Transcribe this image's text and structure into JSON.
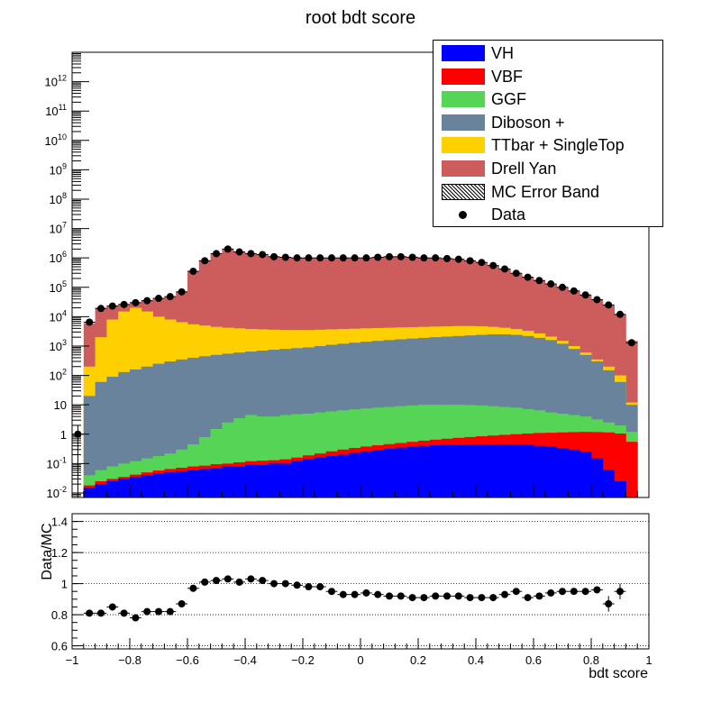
{
  "chart_data": [
    {
      "type": "stacked-histogram",
      "title": "root bdt score",
      "x_range": [
        -1,
        1
      ],
      "bin_count": 50,
      "y_log": true,
      "y_range": [
        0.007,
        10000000000000
      ],
      "y_ticks": [
        {
          "value": 0.01,
          "base": "10",
          "exp": "-2"
        },
        {
          "value": 0.1,
          "base": "10",
          "exp": "-1"
        },
        {
          "value": 1,
          "base": "1",
          "exp": ""
        },
        {
          "value": 10,
          "base": "10",
          "exp": ""
        },
        {
          "value": 100,
          "base": "10",
          "exp": "2"
        },
        {
          "value": 1000,
          "base": "10",
          "exp": "3"
        },
        {
          "value": 10000,
          "base": "10",
          "exp": "4"
        },
        {
          "value": 100000,
          "base": "10",
          "exp": "5"
        },
        {
          "value": 1000000,
          "base": "10",
          "exp": "6"
        },
        {
          "value": 10000000,
          "base": "10",
          "exp": "7"
        },
        {
          "value": 100000000,
          "base": "10",
          "exp": "8"
        },
        {
          "value": 1000000000,
          "base": "10",
          "exp": "9"
        },
        {
          "value": 10000000000,
          "base": "10",
          "exp": "10"
        },
        {
          "value": 100000000000,
          "base": "10",
          "exp": "11"
        },
        {
          "value": 1000000000000,
          "base": "10",
          "exp": "12"
        }
      ],
      "stack_cumulative_top": [
        {
          "name": "VH",
          "color": "#0000ff",
          "values": [
            0,
            0.015,
            0.02,
            0.025,
            0.03,
            0.035,
            0.04,
            0.045,
            0.05,
            0.055,
            0.06,
            0.065,
            0.07,
            0.08,
            0.08,
            0.09,
            0.09,
            0.1,
            0.1,
            0.12,
            0.14,
            0.16,
            0.18,
            0.2,
            0.23,
            0.26,
            0.29,
            0.32,
            0.35,
            0.38,
            0.4,
            0.42,
            0.43,
            0.43,
            0.44,
            0.45,
            0.45,
            0.45,
            0.44,
            0.43,
            0.4,
            0.38,
            0.34,
            0.3,
            0.25,
            0.15,
            0.06,
            0.025,
            0,
            0
          ]
        },
        {
          "name": "VBF",
          "color": "#ff0000",
          "values": [
            0,
            0.018,
            0.025,
            0.03,
            0.035,
            0.042,
            0.05,
            0.058,
            0.065,
            0.072,
            0.08,
            0.085,
            0.095,
            0.1,
            0.11,
            0.12,
            0.125,
            0.13,
            0.14,
            0.16,
            0.19,
            0.22,
            0.26,
            0.3,
            0.34,
            0.38,
            0.42,
            0.46,
            0.5,
            0.55,
            0.6,
            0.65,
            0.7,
            0.75,
            0.8,
            0.85,
            0.9,
            0.95,
            1,
            1.05,
            1.1,
            1.12,
            1.15,
            1.18,
            1.2,
            1.18,
            1.15,
            1.05,
            0.55,
            0
          ]
        },
        {
          "name": "GGF",
          "color": "#55d455",
          "values": [
            0,
            0.04,
            0.06,
            0.08,
            0.1,
            0.12,
            0.15,
            0.18,
            0.22,
            0.3,
            0.45,
            0.8,
            1.5,
            2.5,
            3.5,
            4.5,
            4,
            4,
            4.5,
            4.8,
            5,
            5.5,
            6,
            6.5,
            7,
            7.5,
            8,
            8.5,
            9,
            9.5,
            10,
            10,
            10,
            10,
            9.8,
            9.5,
            9,
            8.5,
            8,
            7.2,
            6.5,
            5.5,
            5,
            4.5,
            4,
            3.2,
            2.5,
            2,
            1.2,
            0
          ]
        },
        {
          "name": "Diboson +",
          "color": "#68839b",
          "values": [
            0,
            20,
            60,
            90,
            130,
            160,
            200,
            250,
            300,
            350,
            400,
            450,
            500,
            550,
            600,
            650,
            700,
            750,
            800,
            850,
            900,
            1000,
            1100,
            1200,
            1300,
            1400,
            1500,
            1600,
            1700,
            1800,
            1900,
            2000,
            2100,
            2200,
            2300,
            2400,
            2500,
            2500,
            2400,
            2200,
            1900,
            1600,
            1200,
            800,
            500,
            300,
            150,
            60,
            10,
            0
          ]
        },
        {
          "name": "TTbar + SingleTop",
          "color": "#ffd000",
          "values": [
            0,
            200,
            2000,
            8000,
            15000,
            20000,
            15000,
            10000,
            8000,
            6500,
            5500,
            5000,
            4500,
            4200,
            4000,
            3800,
            3700,
            3600,
            3500,
            3500,
            3500,
            3600,
            3700,
            3800,
            3900,
            4000,
            4100,
            4200,
            4300,
            4400,
            4500,
            4600,
            4700,
            4800,
            4800,
            4700,
            4500,
            4200,
            3800,
            3300,
            2700,
            2100,
            1500,
            1000,
            600,
            350,
            200,
            100,
            12,
            0
          ]
        },
        {
          "name": "Drell Yan",
          "color": "#cd5c5c",
          "values": [
            0,
            6000,
            20000,
            23000,
            26000,
            30000,
            35000,
            42000,
            48000,
            70000,
            350000,
            800000,
            1400000,
            2000000,
            1600000,
            1400000,
            1300000,
            1100000,
            1050000,
            1000000,
            1000000,
            1000000,
            1000000,
            1000000,
            1000000,
            1000000,
            1050000,
            1100000,
            1100000,
            1050000,
            1000000,
            1000000,
            950000,
            900000,
            800000,
            700000,
            550000,
            420000,
            300000,
            220000,
            170000,
            130000,
            100000,
            75000,
            55000,
            38000,
            25000,
            12000,
            1500,
            0
          ]
        }
      ],
      "data_points": {
        "name": "Data",
        "values": [
          1,
          6500,
          19000,
          23000,
          26000,
          30000,
          35000,
          42000,
          48000,
          70000,
          350000,
          800000,
          1400000,
          2000000,
          1600000,
          1400000,
          1300000,
          1100000,
          1050000,
          1000000,
          1000000,
          1000000,
          1000000,
          1000000,
          1000000,
          1000000,
          1050000,
          1100000,
          1100000,
          1050000,
          1000000,
          1000000,
          950000,
          900000,
          800000,
          700000,
          550000,
          420000,
          300000,
          220000,
          170000,
          130000,
          100000,
          75000,
          55000,
          38000,
          25000,
          12000,
          1300,
          0
        ]
      },
      "legend": {
        "position": "top-right",
        "entries": [
          {
            "label": "VH",
            "kind": "fill",
            "color": "#0000ff"
          },
          {
            "label": "VBF",
            "kind": "fill",
            "color": "#ff0000"
          },
          {
            "label": "GGF",
            "kind": "fill",
            "color": "#55d455"
          },
          {
            "label": "Diboson +",
            "kind": "fill",
            "color": "#68839b"
          },
          {
            "label": "TTbar + SingleTop",
            "kind": "fill",
            "color": "#ffd000"
          },
          {
            "label": "Drell Yan",
            "kind": "fill",
            "color": "#cd5c5c"
          },
          {
            "label": "MC Error Band",
            "kind": "hatch",
            "color": "#000000"
          },
          {
            "label": "Data",
            "kind": "marker",
            "color": "#000000"
          }
        ]
      }
    },
    {
      "type": "scatter",
      "ylabel": "Data/MC",
      "xlabel": "bdt score",
      "x_range": [
        -1,
        1
      ],
      "y_range": [
        0.58,
        1.45
      ],
      "y_ticks": [
        "0.6",
        "0.8",
        "1",
        "1.2",
        "1.4"
      ],
      "x_ticks": [
        "−1",
        "−0.8",
        "−0.6",
        "−0.4",
        "−0.2",
        "0",
        "0.2",
        "0.4",
        "0.6",
        "0.8",
        "1"
      ],
      "grid_y": true,
      "points": [
        {
          "x": -0.94,
          "y": 0.81
        },
        {
          "x": -0.9,
          "y": 0.81
        },
        {
          "x": -0.86,
          "y": 0.85
        },
        {
          "x": -0.82,
          "y": 0.81
        },
        {
          "x": -0.78,
          "y": 0.78
        },
        {
          "x": -0.74,
          "y": 0.82
        },
        {
          "x": -0.7,
          "y": 0.82
        },
        {
          "x": -0.66,
          "y": 0.82
        },
        {
          "x": -0.62,
          "y": 0.87
        },
        {
          "x": -0.58,
          "y": 0.97
        },
        {
          "x": -0.54,
          "y": 1.01
        },
        {
          "x": -0.5,
          "y": 1.02
        },
        {
          "x": -0.46,
          "y": 1.03
        },
        {
          "x": -0.42,
          "y": 1.01
        },
        {
          "x": -0.38,
          "y": 1.03
        },
        {
          "x": -0.34,
          "y": 1.02
        },
        {
          "x": -0.3,
          "y": 1.0
        },
        {
          "x": -0.26,
          "y": 1.0
        },
        {
          "x": -0.22,
          "y": 0.99
        },
        {
          "x": -0.18,
          "y": 0.98
        },
        {
          "x": -0.14,
          "y": 0.98
        },
        {
          "x": -0.1,
          "y": 0.95
        },
        {
          "x": -0.06,
          "y": 0.93
        },
        {
          "x": -0.02,
          "y": 0.93
        },
        {
          "x": 0.02,
          "y": 0.94
        },
        {
          "x": 0.06,
          "y": 0.93
        },
        {
          "x": 0.1,
          "y": 0.92
        },
        {
          "x": 0.14,
          "y": 0.92
        },
        {
          "x": 0.18,
          "y": 0.91
        },
        {
          "x": 0.22,
          "y": 0.91
        },
        {
          "x": 0.26,
          "y": 0.92
        },
        {
          "x": 0.3,
          "y": 0.92
        },
        {
          "x": 0.34,
          "y": 0.92
        },
        {
          "x": 0.38,
          "y": 0.91
        },
        {
          "x": 0.42,
          "y": 0.91
        },
        {
          "x": 0.46,
          "y": 0.91
        },
        {
          "x": 0.5,
          "y": 0.93
        },
        {
          "x": 0.54,
          "y": 0.95
        },
        {
          "x": 0.58,
          "y": 0.91
        },
        {
          "x": 0.62,
          "y": 0.92
        },
        {
          "x": 0.66,
          "y": 0.94
        },
        {
          "x": 0.7,
          "y": 0.95
        },
        {
          "x": 0.74,
          "y": 0.95
        },
        {
          "x": 0.78,
          "y": 0.95
        },
        {
          "x": 0.82,
          "y": 0.96
        },
        {
          "x": 0.86,
          "y": 0.87
        },
        {
          "x": 0.9,
          "y": 0.95
        }
      ]
    }
  ]
}
